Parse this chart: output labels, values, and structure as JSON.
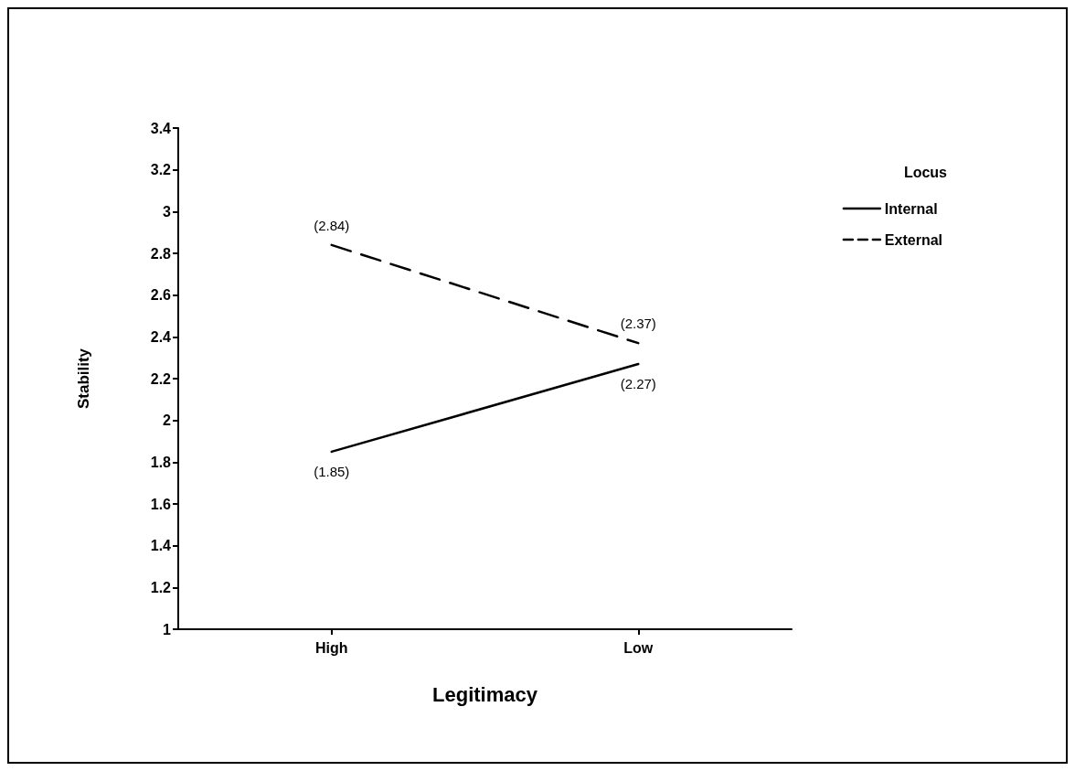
{
  "chart_data": {
    "type": "line",
    "xlabel": "Legitimacy",
    "ylabel": "Stability",
    "legend_title": "Locus",
    "categories": [
      "High",
      "Low"
    ],
    "series": [
      {
        "name": "Internal",
        "color": "#000000",
        "line_style": "solid",
        "values": [
          1.85,
          2.27
        ],
        "value_labels": [
          "(1.85)",
          "(2.27)"
        ]
      },
      {
        "name": "External",
        "color": "#000000",
        "line_style": "dashed",
        "values": [
          2.84,
          2.37
        ],
        "value_labels": [
          "(2.84)",
          "(2.37)"
        ]
      }
    ],
    "ylim": [
      1,
      3.4
    ],
    "yticks": [
      1,
      1.2,
      1.4,
      1.6,
      1.8,
      2,
      2.2,
      2.4,
      2.6,
      2.8,
      3,
      3.2,
      3.4
    ],
    "grid": false,
    "legend": "right",
    "marker": "none"
  }
}
